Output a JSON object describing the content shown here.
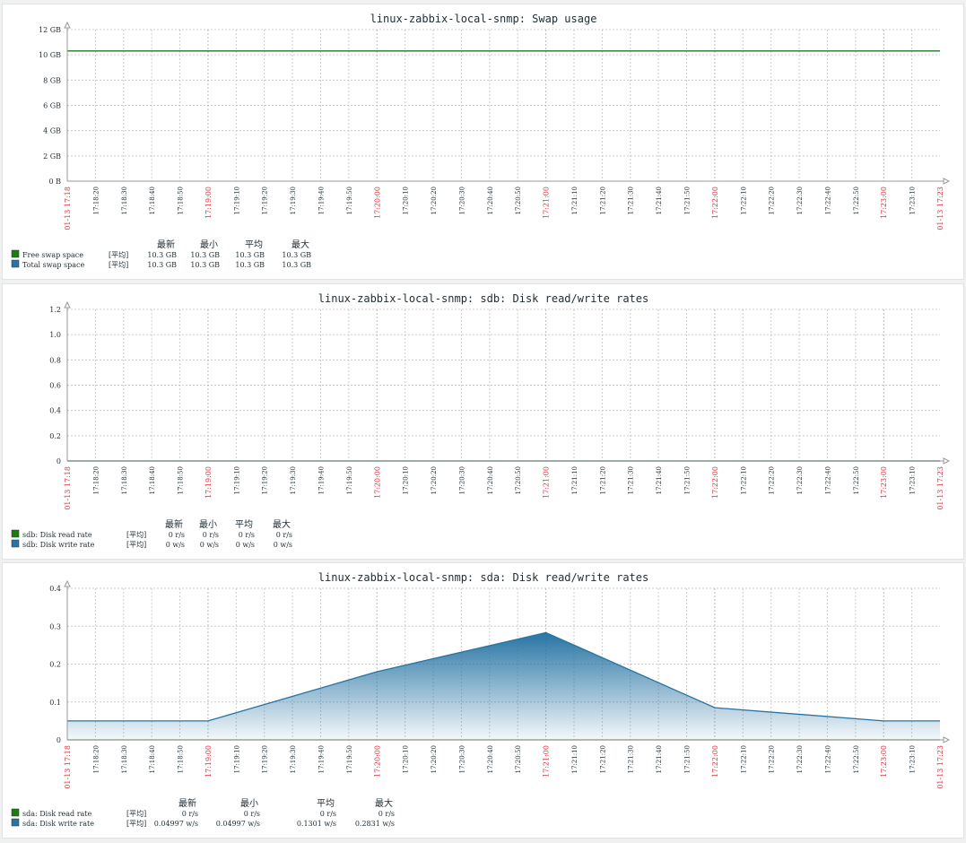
{
  "colors": {
    "green": "#1a7c11",
    "blue": "#2774a4",
    "grid": "#cccccc",
    "axis": "#999999",
    "major_tick": "#e0313e"
  },
  "x_ticks": [
    "17:18:20",
    "17:18:30",
    "17:18:40",
    "17:18:50",
    "17:19:00",
    "17:19:10",
    "17:19:20",
    "17:19:30",
    "17:19:40",
    "17:19:50",
    "17:20:00",
    "17:20:10",
    "17:20:20",
    "17:20:30",
    "17:20:40",
    "17:20:50",
    "17:21:00",
    "17:21:10",
    "17:21:20",
    "17:21:30",
    "17:21:40",
    "17:21:50",
    "17:22:00",
    "17:22:10",
    "17:22:20",
    "17:22:30",
    "17:22:40",
    "17:22:50",
    "17:23:00",
    "17:23:10"
  ],
  "x_major": [
    "17:19:00",
    "17:20:00",
    "17:21:00",
    "17:22:00",
    "17:23:00"
  ],
  "x_start": "01-13 17:18",
  "x_end": "01-13 17:23",
  "legend_headers": [
    "最新",
    "最小",
    "平均",
    "最大"
  ],
  "chart_data": [
    {
      "type": "line",
      "title": "linux-zabbix-local-snmp: Swap usage",
      "yticks": [
        "0 B",
        "2 GB",
        "4 GB",
        "6 GB",
        "8 GB",
        "10 GB",
        "12 GB"
      ],
      "ylim": [
        0,
        12
      ],
      "x": [
        "17:18:10",
        "17:23:20"
      ],
      "series": [
        {
          "name": "Free swap space",
          "color": "green",
          "func": "[平均]",
          "values": [
            10.3,
            10.3
          ],
          "stats": [
            "10.3 GB",
            "10.3 GB",
            "10.3 GB",
            "10.3 GB"
          ]
        },
        {
          "name": "Total swap space",
          "color": "blue",
          "func": "[平均]",
          "values": [
            10.3,
            10.3
          ],
          "stats": [
            "10.3 GB",
            "10.3 GB",
            "10.3 GB",
            "10.3 GB"
          ]
        }
      ]
    },
    {
      "type": "line",
      "title": "linux-zabbix-local-snmp: sdb: Disk read/write rates",
      "yticks": [
        "0",
        "0.2",
        "0.4",
        "0.6",
        "0.8",
        "1.0",
        "1.2"
      ],
      "ylim": [
        0,
        1.2
      ],
      "x": [
        "17:18:10",
        "17:23:20"
      ],
      "series": [
        {
          "name": "sdb: Disk read rate",
          "color": "green",
          "func": "[平均]",
          "values": [
            0,
            0
          ],
          "stats": [
            "0 r/s",
            "0 r/s",
            "0 r/s",
            "0 r/s"
          ]
        },
        {
          "name": "sdb: Disk write rate",
          "color": "blue",
          "func": "[平均]",
          "values": [
            0,
            0
          ],
          "stats": [
            "0 w/s",
            "0 w/s",
            "0 w/s",
            "0 w/s"
          ]
        }
      ]
    },
    {
      "type": "area",
      "title": "linux-zabbix-local-snmp: sda: Disk read/write rates",
      "yticks": [
        "0",
        "0.1",
        "0.2",
        "0.3",
        "0.4"
      ],
      "ylim": [
        0,
        0.4
      ],
      "x": [
        "17:18:10",
        "17:19:00",
        "17:20:00",
        "17:21:00",
        "17:22:00",
        "17:23:00",
        "17:23:20"
      ],
      "series": [
        {
          "name": "sda: Disk read rate",
          "color": "green",
          "func": "[平均]",
          "values": [
            0,
            0,
            0,
            0,
            0,
            0,
            0
          ],
          "stats": [
            "0 r/s",
            "0 r/s",
            "0 r/s",
            "0 r/s"
          ]
        },
        {
          "name": "sda: Disk write rate",
          "color": "blue",
          "func": "[平均]",
          "values": [
            0.05,
            0.05,
            0.18,
            0.283,
            0.085,
            0.05,
            0.05
          ],
          "stats": [
            "0.04997 w/s",
            "0.04997 w/s",
            "0.1301 w/s",
            "0.2831 w/s"
          ]
        }
      ]
    }
  ]
}
